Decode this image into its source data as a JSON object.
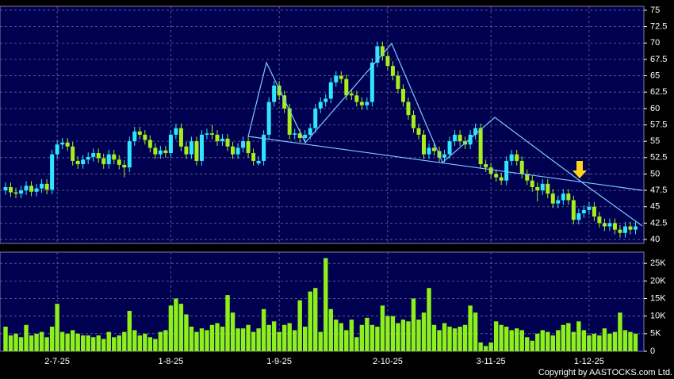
{
  "chart_data": {
    "type": "candlestick",
    "categories": [
      null,
      null,
      null,
      null,
      null,
      null,
      null,
      null,
      null,
      null,
      "2-7-25",
      null,
      null,
      null,
      null,
      null,
      null,
      null,
      null,
      null,
      null,
      null,
      null,
      null,
      null,
      null,
      null,
      null,
      null,
      null,
      null,
      null,
      "1-8-25",
      null,
      null,
      null,
      null,
      null,
      null,
      null,
      null,
      null,
      null,
      null,
      null,
      null,
      null,
      null,
      null,
      null,
      null,
      null,
      null,
      "1-9-25",
      null,
      null,
      null,
      null,
      null,
      null,
      null,
      null,
      null,
      null,
      null,
      null,
      null,
      null,
      null,
      null,
      null,
      null,
      null,
      null,
      "2-10-25",
      null,
      null,
      null,
      null,
      null,
      null,
      null,
      null,
      null,
      null,
      null,
      null,
      null,
      null,
      null,
      null,
      null,
      null,
      null,
      "3-11-25",
      null,
      null,
      null,
      null,
      null,
      null,
      null,
      null,
      null,
      null,
      null,
      null,
      null,
      null,
      null,
      null,
      null,
      null,
      "1-12-25",
      null,
      null,
      null,
      null,
      null,
      null,
      null,
      null,
      null
    ],
    "open": [
      47.5,
      48,
      47.2,
      47,
      47.5,
      48.2,
      47.3,
      47.8,
      48.5,
      47.6,
      53,
      54.5,
      54.8,
      54.2,
      52,
      51.5,
      52.2,
      52.6,
      53.2,
      52.4,
      51.5,
      53,
      52.2,
      51.4,
      51,
      55,
      56.5,
      56,
      55.2,
      54,
      53,
      53.6,
      53.2,
      56,
      57,
      54.2,
      53,
      55,
      52,
      56,
      56.2,
      56,
      55,
      55.4,
      54.2,
      53,
      54,
      55,
      53.2,
      51.6,
      52,
      56,
      61,
      63.5,
      62,
      60,
      56,
      56.2,
      55.5,
      56,
      57,
      60,
      61,
      61.5,
      64,
      65,
      64.5,
      62.3,
      62,
      61,
      60.5,
      61,
      67,
      69.5,
      68,
      66.5,
      65,
      63,
      61,
      59,
      57,
      56,
      53,
      54,
      53.5,
      52.5,
      53,
      55,
      56,
      55,
      54.5,
      56,
      57,
      51.5,
      51,
      50,
      49.5,
      49,
      52,
      53,
      52,
      50,
      49,
      48,
      47.5,
      48.5,
      47,
      45.5,
      46,
      47,
      46,
      43,
      44,
      44.5,
      45,
      43.5,
      42.5,
      42,
      42.5,
      41.5,
      41,
      42,
      41.5
    ],
    "high": [
      48.7,
      48.7,
      47.9,
      48.2,
      48.9,
      48.9,
      48.5,
      49.2,
      49.2,
      53.7,
      55.2,
      55.5,
      55.5,
      54.9,
      52.7,
      52.9,
      53.3,
      53.9,
      53.9,
      53.1,
      53.7,
      53.7,
      52.9,
      52.1,
      55.7,
      57.2,
      57.2,
      56.7,
      55.9,
      54.7,
      54.3,
      54.3,
      56.7,
      57.7,
      57.7,
      54.9,
      55.7,
      55.7,
      56.7,
      56.9,
      57.5,
      56.7,
      56.1,
      56.1,
      54.9,
      54.7,
      55.7,
      55.7,
      53.9,
      52.7,
      56.7,
      61.7,
      64.2,
      64.2,
      62.7,
      60.7,
      56.9,
      56.9,
      56.7,
      57.7,
      60.7,
      61.7,
      62.2,
      64.7,
      65.7,
      65.7,
      65.2,
      63,
      62.7,
      61.7,
      61.7,
      67.7,
      70.2,
      70.2,
      68.7,
      67.2,
      65.7,
      63.7,
      61.7,
      59.7,
      57.7,
      56.7,
      54.7,
      54.7,
      54.2,
      53.7,
      55.7,
      56.7,
      56.7,
      55.7,
      56.7,
      57.7,
      57.7,
      52.2,
      51.7,
      50.7,
      50.2,
      52.7,
      53.7,
      53.7,
      52.7,
      50.7,
      49.7,
      48.7,
      49.2,
      49.2,
      47.7,
      46.7,
      47.7,
      47.7,
      46.7,
      44.7,
      45.2,
      45.7,
      45.7,
      44.2,
      43.2,
      43.2,
      43.2,
      42.2,
      42.7,
      42.7,
      42.7
    ],
    "low": [
      46.8,
      46.5,
      46.3,
      46.3,
      46.8,
      46.6,
      46.6,
      47.1,
      46.9,
      46.9,
      52.3,
      53.8,
      53.5,
      51.3,
      50.8,
      50.8,
      51.5,
      51.9,
      51.7,
      50.8,
      50.8,
      51.5,
      50.7,
      49.5,
      50.3,
      54.3,
      55.3,
      54.5,
      53.3,
      52.3,
      52.3,
      52.5,
      52.5,
      55.3,
      53.5,
      52.3,
      52.3,
      51.3,
      51.3,
      55.3,
      55.3,
      54.3,
      54.3,
      53.5,
      52.3,
      52.3,
      53.3,
      52.5,
      51.3,
      51.3,
      51.3,
      55.3,
      60.3,
      61.3,
      59.3,
      55.3,
      55.3,
      54.8,
      54.8,
      55.3,
      56.3,
      59.3,
      60.3,
      60.8,
      63.3,
      63.8,
      61.3,
      61.3,
      60.3,
      59.8,
      59.8,
      60.3,
      66.3,
      67.3,
      65.8,
      64.3,
      62.3,
      60.3,
      58.3,
      56.3,
      55.3,
      52.3,
      52.3,
      52.8,
      51.8,
      51.8,
      52.3,
      54.3,
      54.3,
      53.8,
      53.8,
      55.3,
      50.8,
      50.3,
      49.3,
      48.8,
      48.3,
      48.3,
      51.3,
      51.3,
      49.3,
      48.3,
      47.3,
      45.8,
      46.8,
      46.3,
      44.8,
      44.8,
      45.3,
      45.3,
      42.3,
      42.3,
      43.3,
      43.8,
      42.8,
      41.8,
      41.3,
      41.3,
      40.8,
      40.3,
      40.3,
      40.8,
      40.8
    ],
    "close": [
      48,
      47.2,
      47,
      47.5,
      48.2,
      47.3,
      47.8,
      48.5,
      47.6,
      53,
      54.5,
      54.8,
      54.2,
      52,
      51.5,
      52.2,
      52.6,
      53.2,
      52.4,
      51.5,
      53,
      52.2,
      51.4,
      51,
      55,
      56.5,
      56,
      55.2,
      54,
      53,
      53.6,
      53.2,
      56,
      57,
      54.2,
      53,
      55,
      52,
      56,
      56.2,
      56,
      55,
      55.4,
      54.2,
      53,
      54,
      55,
      53.2,
      52,
      52,
      56,
      61,
      63.5,
      62,
      60,
      56,
      56.2,
      55.5,
      56,
      57,
      60,
      61,
      61.5,
      64,
      65,
      64.5,
      62,
      62,
      61,
      60.5,
      61,
      67,
      69.5,
      68,
      66.5,
      65,
      63,
      61,
      59,
      57,
      56,
      53,
      54,
      53.5,
      52.5,
      53,
      55,
      56,
      55,
      54.5,
      56,
      57,
      51.5,
      51,
      50,
      49.5,
      49,
      52,
      53,
      52,
      50,
      49,
      48,
      47.5,
      48.5,
      47,
      45.5,
      46,
      47,
      46,
      43,
      44,
      44.5,
      45,
      43.5,
      42.5,
      42,
      42.5,
      41.5,
      41,
      42,
      41.5,
      42
    ],
    "up_color": "#2ee6ff",
    "down_color": "#a6ee1e",
    "ylim": [
      39.4,
      75.6
    ],
    "yticks": [
      40,
      42.5,
      45,
      47.5,
      50,
      52.5,
      55,
      57.5,
      60,
      62.5,
      65,
      67.5,
      70,
      72.5,
      75
    ],
    "grid": true,
    "volume": {
      "color": "#8ef01a",
      "values": [
        7000,
        4500,
        5000,
        4000,
        7500,
        4500,
        5000,
        5500,
        4000,
        7000,
        13500,
        5500,
        5000,
        6000,
        5000,
        4500,
        4500,
        4000,
        4500,
        3500,
        5500,
        4000,
        4500,
        5500,
        11500,
        6000,
        4500,
        5000,
        4000,
        3500,
        5500,
        6000,
        13000,
        15000,
        13500,
        10500,
        7000,
        5500,
        6500,
        6000,
        7500,
        8000,
        7000,
        16000,
        11000,
        6500,
        6500,
        7500,
        5500,
        6500,
        12000,
        7500,
        8500,
        5500,
        7500,
        8000,
        6000,
        14500,
        7000,
        17000,
        18000,
        5500,
        26500,
        12000,
        9000,
        8000,
        6000,
        9000,
        4000,
        7500,
        9500,
        7500,
        7000,
        13000,
        10000,
        10000,
        8000,
        9000,
        8500,
        15000,
        9000,
        11000,
        18000,
        7500,
        6000,
        8000,
        7000,
        6500,
        7000,
        7500,
        13000,
        11000,
        2500,
        1500,
        2500,
        8500,
        7500,
        7000,
        6000,
        6500,
        6000,
        4000,
        3000,
        5000,
        6000,
        5500,
        4500,
        6000,
        7500,
        8000,
        5500,
        8500,
        6000,
        4500,
        5000,
        4500,
        6500,
        5000,
        5500,
        11000,
        6000,
        5500,
        5000
      ],
      "ylim": [
        0,
        28200
      ],
      "yticks": [
        0,
        {
          "value": 5000,
          "label": "5K"
        },
        {
          "value": 10000,
          "label": "10K"
        },
        {
          "value": 15000,
          "label": "15K"
        },
        {
          "value": 20000,
          "label": "20K"
        },
        {
          "value": 25000,
          "label": "25K"
        }
      ]
    },
    "copyright": "Copyright by AASTOCKS.com Ltd."
  }
}
